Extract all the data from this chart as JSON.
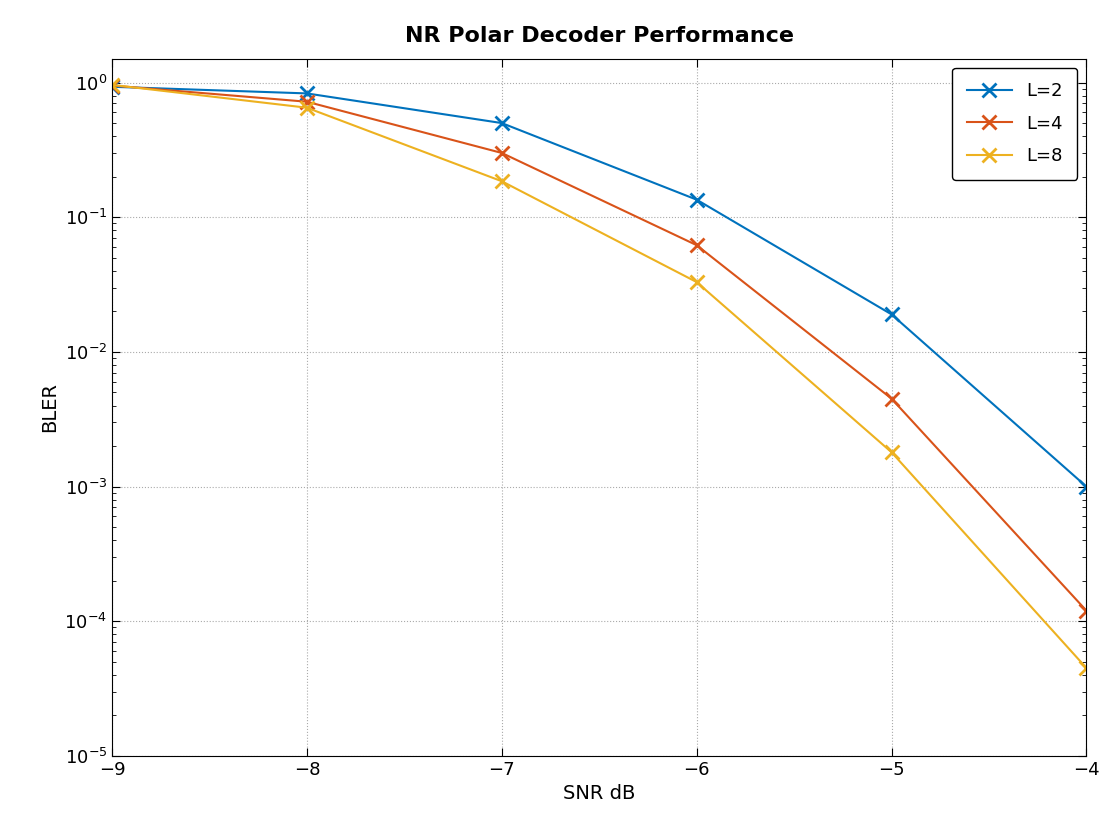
{
  "title": "NR Polar Decoder Performance",
  "xlabel": "SNR dB",
  "ylabel": "BLER",
  "xlim": [
    -9,
    -4
  ],
  "ylim": [
    1e-05,
    1.5
  ],
  "xticks": [
    -9,
    -8,
    -7,
    -6,
    -5,
    -4
  ],
  "series": [
    {
      "label": "L=2",
      "color": "#0072BD",
      "snr": [
        -9,
        -8,
        -7,
        -6,
        -5,
        -4
      ],
      "bler": [
        0.93,
        0.83,
        0.5,
        0.135,
        0.019,
        0.001
      ]
    },
    {
      "label": "L=4",
      "color": "#D95319",
      "snr": [
        -9,
        -8,
        -7,
        -6,
        -5,
        -4
      ],
      "bler": [
        0.95,
        0.72,
        0.3,
        0.062,
        0.0045,
        0.00012
      ]
    },
    {
      "label": "L=8",
      "color": "#EDB120",
      "snr": [
        -9,
        -8,
        -7,
        -6,
        -5,
        -4
      ],
      "bler": [
        0.96,
        0.65,
        0.185,
        0.033,
        0.0018,
        4.5e-05
      ]
    }
  ],
  "background_color": "#ffffff",
  "grid_color": "#aaaaaa",
  "title_fontsize": 16,
  "axis_fontsize": 14,
  "tick_fontsize": 13,
  "legend_fontsize": 13,
  "linewidth": 1.5,
  "marker": "x",
  "markersize": 10,
  "markeredgewidth": 2
}
